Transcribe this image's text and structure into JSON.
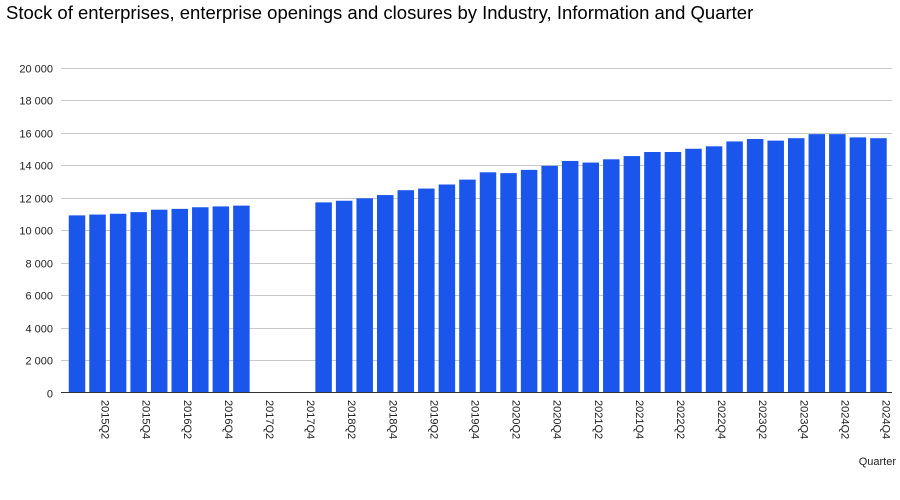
{
  "chart_data": {
    "type": "bar",
    "title": "Stock of enterprises, enterprise openings and closures by Industry, Information and Quarter",
    "xlabel": "Quarter",
    "ylabel": "",
    "ylim": [
      0,
      20000
    ],
    "yticks": [
      0,
      2000,
      4000,
      6000,
      8000,
      10000,
      12000,
      14000,
      16000,
      18000,
      20000
    ],
    "ytick_labels": [
      "0",
      "2 000",
      "4 000",
      "6 000",
      "8 000",
      "10 000",
      "12 000",
      "14 000",
      "16 000",
      "18 000",
      "20 000"
    ],
    "categories": [
      "2015Q1",
      "2015Q2",
      "2015Q3",
      "2015Q4",
      "2016Q1",
      "2016Q2",
      "2016Q3",
      "2016Q4",
      "2017Q1",
      "2017Q2",
      "2017Q3",
      "2017Q4",
      "2018Q1",
      "2018Q2",
      "2018Q3",
      "2018Q4",
      "2019Q1",
      "2019Q2",
      "2019Q3",
      "2019Q4",
      "2020Q1",
      "2020Q2",
      "2020Q3",
      "2020Q4",
      "2021Q1",
      "2021Q2",
      "2021Q3",
      "2021Q4",
      "2022Q1",
      "2022Q2",
      "2022Q3",
      "2022Q4",
      "2023Q1",
      "2023Q2",
      "2023Q3",
      "2023Q4",
      "2024Q1",
      "2024Q2",
      "2024Q3",
      "2024Q4"
    ],
    "shown_category_labels": [
      "2015Q2",
      "2015Q4",
      "2016Q2",
      "2016Q4",
      "2017Q2",
      "2017Q4",
      "2018Q2",
      "2018Q4",
      "2019Q2",
      "2019Q4",
      "2020Q2",
      "2020Q4",
      "2021Q2",
      "2021Q4",
      "2022Q2",
      "2022Q4",
      "2023Q2",
      "2023Q4",
      "2024Q2",
      "2024Q4"
    ],
    "values": [
      10900,
      10950,
      11000,
      11100,
      11250,
      11300,
      11400,
      11450,
      11500,
      null,
      null,
      null,
      11700,
      11800,
      11950,
      12150,
      12450,
      12550,
      12800,
      13100,
      13550,
      13500,
      13700,
      13950,
      14250,
      14150,
      14350,
      14550,
      14800,
      14800,
      15000,
      15150,
      15450,
      15600,
      15500,
      15650,
      15900,
      15900,
      15700,
      15650
    ],
    "color": "#1a56eb",
    "grid": true,
    "legend": "none"
  }
}
